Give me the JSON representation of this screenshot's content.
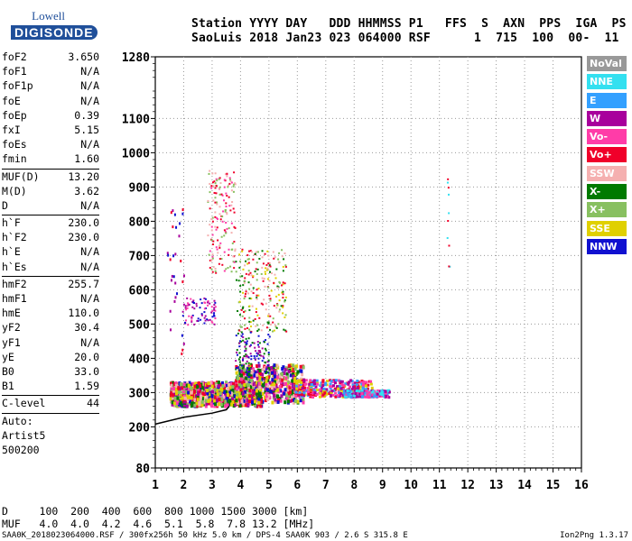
{
  "logo": {
    "line1": "Lowell",
    "line2": "DIGISONDE"
  },
  "header": {
    "line1": "Station YYYY DAY   DDD HHMMSS P1   FFS  S  AXN  PPS  IGA  PS",
    "line2": "SaoLuis 2018 Jan23 023 064000 RSF      1  715  100  00-  11"
  },
  "params": [
    {
      "k": "foF2",
      "v": "3.650"
    },
    {
      "k": "foF1",
      "v": "N/A"
    },
    {
      "k": "foF1p",
      "v": "N/A"
    },
    {
      "k": "foE",
      "v": "N/A"
    },
    {
      "k": "foEp",
      "v": "0.39"
    },
    {
      "k": "fxI",
      "v": "5.15"
    },
    {
      "k": "foEs",
      "v": "N/A"
    },
    {
      "k": "fmin",
      "v": "1.60"
    },
    {
      "sep": true
    },
    {
      "k": "MUF(D)",
      "v": "13.20"
    },
    {
      "k": "M(D)",
      "v": "3.62"
    },
    {
      "k": "D",
      "v": "N/A"
    },
    {
      "sep": true
    },
    {
      "k": "h`F",
      "v": "230.0"
    },
    {
      "k": "h`F2",
      "v": "230.0"
    },
    {
      "k": "h`E",
      "v": "N/A"
    },
    {
      "k": "h`Es",
      "v": "N/A"
    },
    {
      "sep": true
    },
    {
      "k": "hmF2",
      "v": "255.7"
    },
    {
      "k": "hmF1",
      "v": "N/A"
    },
    {
      "k": "hmE",
      "v": "110.0"
    },
    {
      "k": "yF2",
      "v": "30.4"
    },
    {
      "k": "yF1",
      "v": "N/A"
    },
    {
      "k": "yE",
      "v": "20.0"
    },
    {
      "k": "B0",
      "v": "33.0"
    },
    {
      "k": "B1",
      "v": "1.59"
    },
    {
      "sep": true
    },
    {
      "k": "C-level",
      "v": "44"
    },
    {
      "sep": true
    },
    {
      "k": "Auto:",
      "v": ""
    },
    {
      "k": "Artist5",
      "v": ""
    },
    {
      "k": "500200",
      "v": ""
    }
  ],
  "legend": [
    {
      "label": "NoVal",
      "color": "#999999"
    },
    {
      "label": "NNE",
      "color": "#33e0f0"
    },
    {
      "label": "E",
      "color": "#33a0ff"
    },
    {
      "label": "W",
      "color": "#a8009c"
    },
    {
      "label": "Vo-",
      "color": "#ff3ca8"
    },
    {
      "label": "Vo+",
      "color": "#f0002a"
    },
    {
      "label": "SSW",
      "color": "#f5b0b0"
    },
    {
      "label": "X-",
      "color": "#007a00"
    },
    {
      "label": "X+",
      "color": "#88c060"
    },
    {
      "label": "SSE",
      "color": "#e0d000"
    },
    {
      "label": "NNW",
      "color": "#1010d0"
    }
  ],
  "chart_data": {
    "type": "scatter",
    "x_ticks": [
      "1",
      "2",
      "3",
      "4",
      "5",
      "6",
      "7",
      "8",
      "9",
      "10",
      "11",
      "12",
      "13",
      "14",
      "15",
      "16"
    ],
    "y_ticks": [
      "80",
      "200",
      "300",
      "400",
      "500",
      "600",
      "700",
      "800",
      "900",
      "1000",
      "1100",
      "1280"
    ],
    "xlim": [
      1,
      16
    ],
    "ylim": [
      80,
      1280
    ]
  },
  "footer": {
    "d_row": "D     100  200  400  600  800 1000 1500 3000 [km]",
    "muf_row": "MUF   4.0  4.0  4.2  4.6  5.1  5.8  7.8 13.2 [MHz]",
    "file": "SAA0K_2018023064000.RSF / 300fx256h 50 kHz 5.0 km / DPS-4 SAA0K 903 / 2.6 S 315.8 E",
    "version": "Ion2Png 1.3.17"
  }
}
